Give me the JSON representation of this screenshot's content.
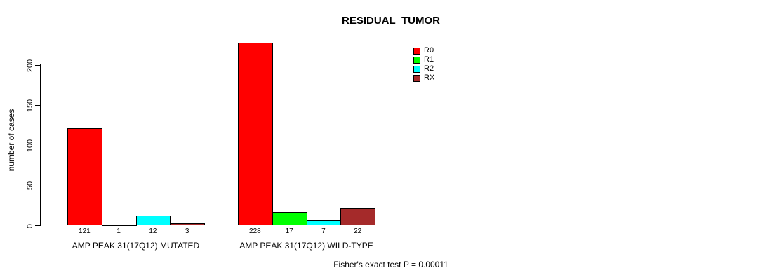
{
  "chart_data": {
    "type": "bar",
    "title": "RESIDUAL_TUMOR",
    "ylabel": "number of cases",
    "xlabel": "",
    "categories": [
      "AMP PEAK 31(17Q12) MUTATED",
      "AMP PEAK 31(17Q12) WILD-TYPE"
    ],
    "series": [
      {
        "name": "R0",
        "color": "#FF0000",
        "values": [
          121,
          228
        ]
      },
      {
        "name": "R1",
        "color": "#00FF00",
        "values": [
          1,
          17
        ]
      },
      {
        "name": "R2",
        "color": "#00FFFF",
        "values": [
          12,
          7
        ]
      },
      {
        "name": "RX",
        "color": "#A52A2A",
        "values": [
          3,
          22
        ]
      }
    ],
    "yticks": [
      0,
      50,
      100,
      150,
      200
    ],
    "ylim": [
      0,
      230
    ],
    "grid": false,
    "legend_position": "top-right",
    "bar_border_color": "#000000",
    "annotation": "Fisher's exact test P = 0.00011"
  }
}
